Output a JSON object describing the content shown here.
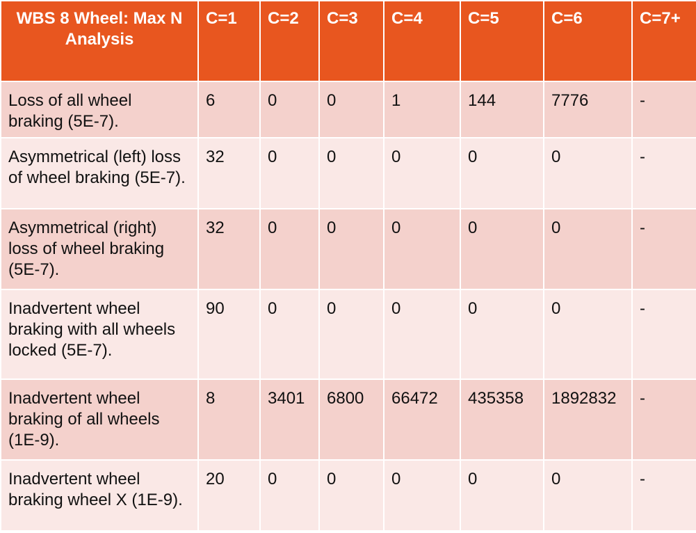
{
  "table": {
    "headers": [
      "WBS 8 Wheel: Max N Analysis",
      "C=1",
      "C=2",
      "C=3",
      "C=4",
      "C=5",
      "C=6",
      "C=7+"
    ],
    "rows": [
      {
        "cells": [
          "Loss of all wheel braking (5E-7).",
          "6",
          "0",
          "0",
          "1",
          "144",
          "7776",
          "-"
        ]
      },
      {
        "cells": [
          "Asymmetrical (left) loss of wheel braking (5E-7).",
          "32",
          "0",
          "0",
          "0",
          "0",
          "0",
          "-"
        ]
      },
      {
        "cells": [
          "Asymmetrical (right) loss of wheel braking (5E-7).",
          "32",
          "0",
          "0",
          "0",
          "0",
          "0",
          "-"
        ]
      },
      {
        "cells": [
          "Inadvertent wheel braking with all wheels locked (5E-7).",
          "90",
          "0",
          "0",
          "0",
          "0",
          "0",
          "-"
        ]
      },
      {
        "cells": [
          "Inadvertent wheel braking of all wheels (1E-9).",
          "8",
          "3401",
          "6800",
          "66472",
          "435358",
          "1892832",
          "-"
        ]
      },
      {
        "cells": [
          "Inadvertent wheel braking wheel X (1E-9).",
          "20",
          "0",
          "0",
          "0",
          "0",
          "0",
          "-"
        ]
      }
    ]
  },
  "colors": {
    "header_bg": "#e8561f",
    "row_dark": "#f4d1cc",
    "row_light": "#fae8e6"
  }
}
